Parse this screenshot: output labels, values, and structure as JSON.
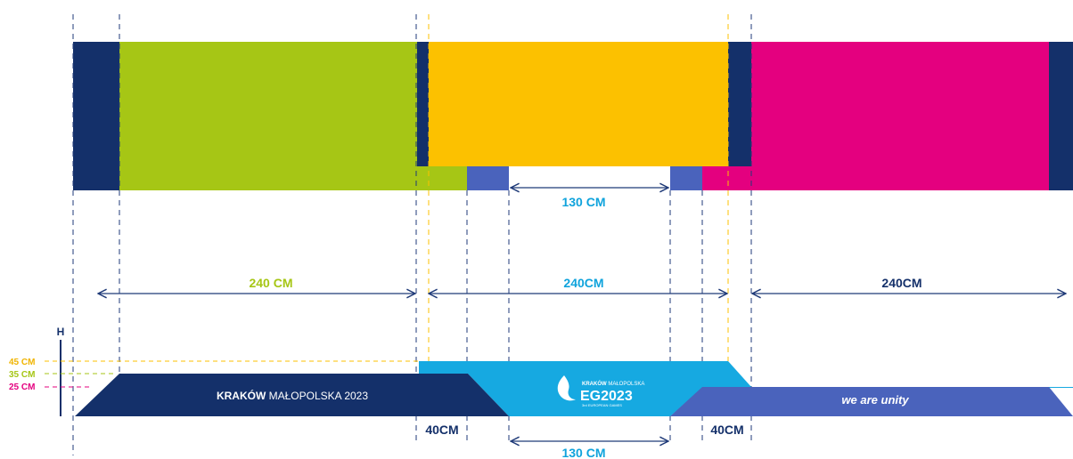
{
  "colors": {
    "navy": "#14306a",
    "green": "#a6c615",
    "yellow": "#fcc100",
    "magenta": "#e4007f",
    "cyan": "#16a9e1",
    "periwinkle": "#4a63bc",
    "dash": "#1f3a78",
    "yellow_text": "#f0b400",
    "green_text": "#a6c615",
    "magenta_text": "#e4007f",
    "cyan_text": "#0fa3dc"
  },
  "dimensions": {
    "gap_top": "130 CM",
    "gap_bottom": "130 CM",
    "width_left": "240 CM",
    "width_middle": "240CM",
    "width_right": "240CM",
    "slope_left": "40CM",
    "slope_right": "40CM"
  },
  "heights": {
    "axis_label": "H",
    "h45": "45 CM",
    "h35": "35 CM",
    "h25": "25 CM"
  },
  "strips": {
    "left_bold": "KRAKÓW",
    "left_rest": " MAŁOPOLSKA 2023",
    "right_text": "we are unity"
  },
  "logo": {
    "line1_bold": "KRAKÓW",
    "line1_rest": " MAŁOPOLSKA",
    "mark": "EG2023",
    "sub": "3rd EUROPEAN GAMES"
  }
}
